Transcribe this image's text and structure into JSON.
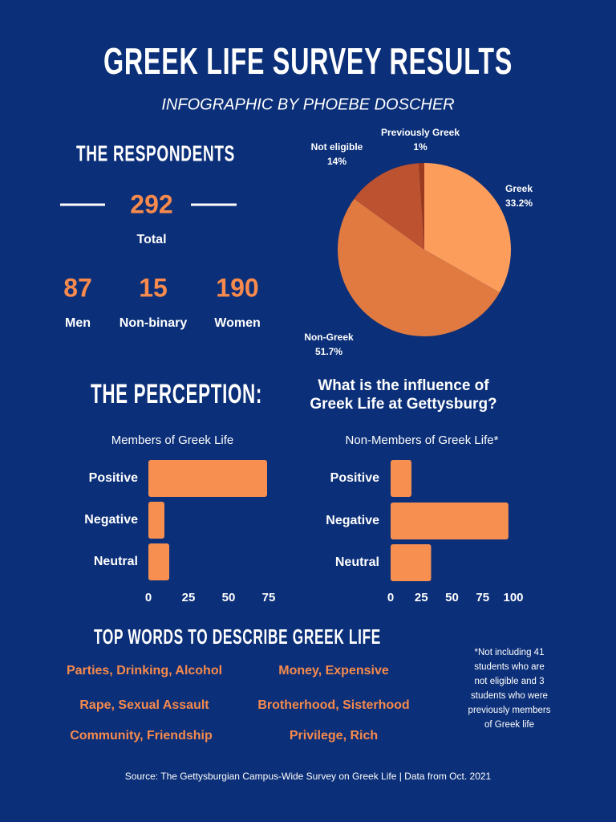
{
  "title": "GREEK LIFE SURVEY RESULTS",
  "subtitle": "INFOGRAPHIC BY PHOEBE DOSCHER",
  "respondents": {
    "heading": "THE RESPONDENTS",
    "total": 292,
    "total_label": "Total",
    "groups": [
      {
        "value": 87,
        "label": "Men"
      },
      {
        "value": 15,
        "label": "Non-binary"
      },
      {
        "value": 190,
        "label": "Women"
      }
    ]
  },
  "perception": {
    "heading": "THE PERCEPTION:",
    "question": [
      "What is the influence of",
      "Greek Life at Gettysburg?"
    ]
  },
  "chart_data": [
    {
      "type": "pie",
      "categories": [
        "Greek",
        "Non-Greek",
        "Not eligible",
        "Previously Greek"
      ],
      "values": [
        33.2,
        51.7,
        14,
        1
      ],
      "value_labels": [
        "33.2%",
        "51.7%",
        "14%",
        "1%"
      ],
      "colors": [
        "#fd9d5c",
        "#e07a40",
        "#bd5230",
        "#9a3a1e"
      ]
    },
    {
      "type": "bar",
      "orientation": "horizontal",
      "title": "Members of Greek Life",
      "categories": [
        "Positive",
        "Negative",
        "Neutral"
      ],
      "values": [
        74,
        10,
        13
      ],
      "color": "#f78f50",
      "xlim": [
        0,
        76
      ],
      "xticks": [
        0,
        25,
        50,
        75
      ]
    },
    {
      "type": "bar",
      "orientation": "horizontal",
      "title": "Non-Members of Greek Life*",
      "categories": [
        "Positive",
        "Negative",
        "Neutral"
      ],
      "values": [
        17,
        96,
        33
      ],
      "color": "#f78f50",
      "xlim": [
        0,
        100
      ],
      "xticks": [
        0,
        25,
        50,
        75,
        100
      ]
    }
  ],
  "top_words": {
    "heading": "TOP WORDS TO DESCRIBE GREEK LIFE",
    "items": [
      "Parties, Drinking, Alcohol",
      "Money, Expensive",
      "Rape, Sexual Assault",
      "Brotherhood, Sisterhood",
      "Community, Friendship",
      "Privilege, Rich"
    ]
  },
  "footnote": [
    "*Not including 41",
    "students who are",
    "not eligible and 3",
    "students who were",
    "previously members",
    "of Greek life"
  ],
  "source": "Source: The Gettysburgian Campus-Wide Survey on Greek Life | Data from Oct. 2021"
}
